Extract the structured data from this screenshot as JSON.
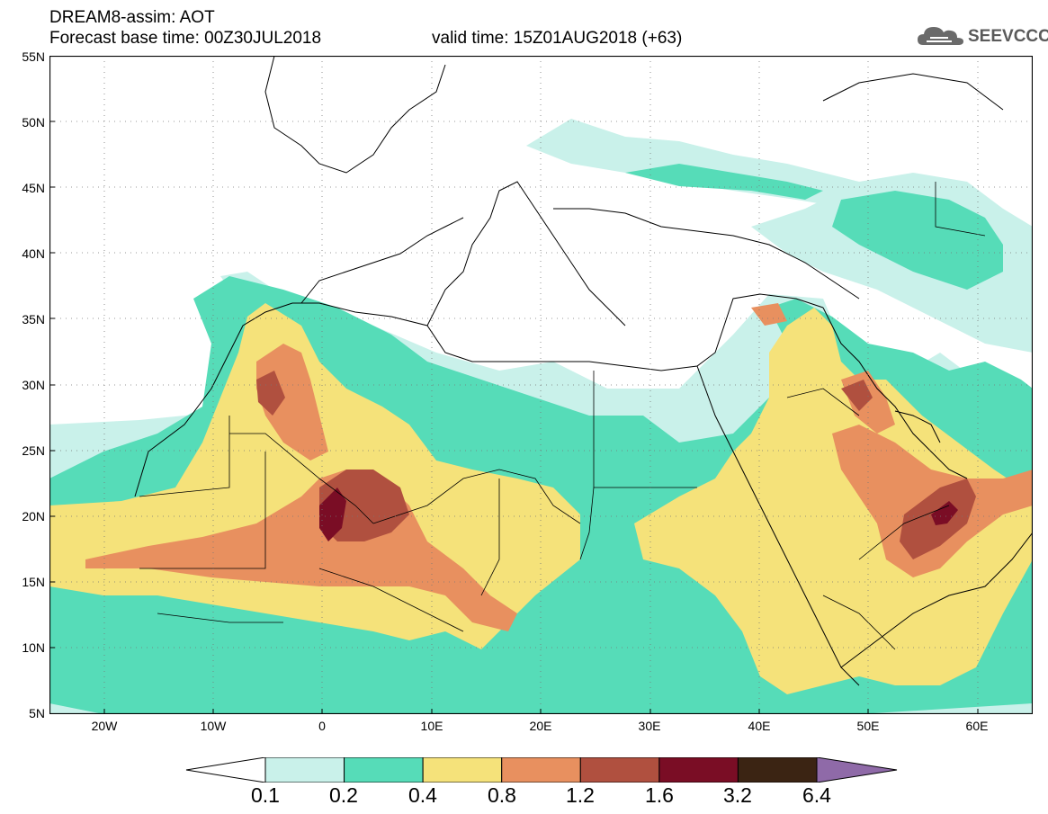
{
  "header": {
    "line1": "DREAM8-assim: AOT",
    "line2": "Forecast base time: 00Z30JUL2018",
    "valid": "valid time: 15Z01AUG2018 (+63)"
  },
  "logo": {
    "text": "SEEVCCC",
    "icon": "cloud-icon"
  },
  "map": {
    "lat_labels": [
      "55N",
      "50N",
      "45N",
      "40N",
      "35N",
      "30N",
      "25N",
      "20N",
      "15N",
      "10N",
      "5N"
    ],
    "lon_labels": [
      "20W",
      "10W",
      "0",
      "10E",
      "20E",
      "30E",
      "40E",
      "50E",
      "60E"
    ],
    "grid": "dotted",
    "lon_range": [
      -25,
      65
    ],
    "lat_range": [
      5,
      55
    ]
  },
  "colorbar": {
    "labels": [
      "0.1",
      "0.2",
      "0.4",
      "0.8",
      "1.2",
      "1.6",
      "3.2",
      "6.4"
    ],
    "colors": [
      "#ffffff",
      "#c9f1ea",
      "#56dcb8",
      "#f5e27a",
      "#e8905f",
      "#b0503f",
      "#7a0d25",
      "#3b2413",
      "#8f6aa8"
    ]
  }
}
